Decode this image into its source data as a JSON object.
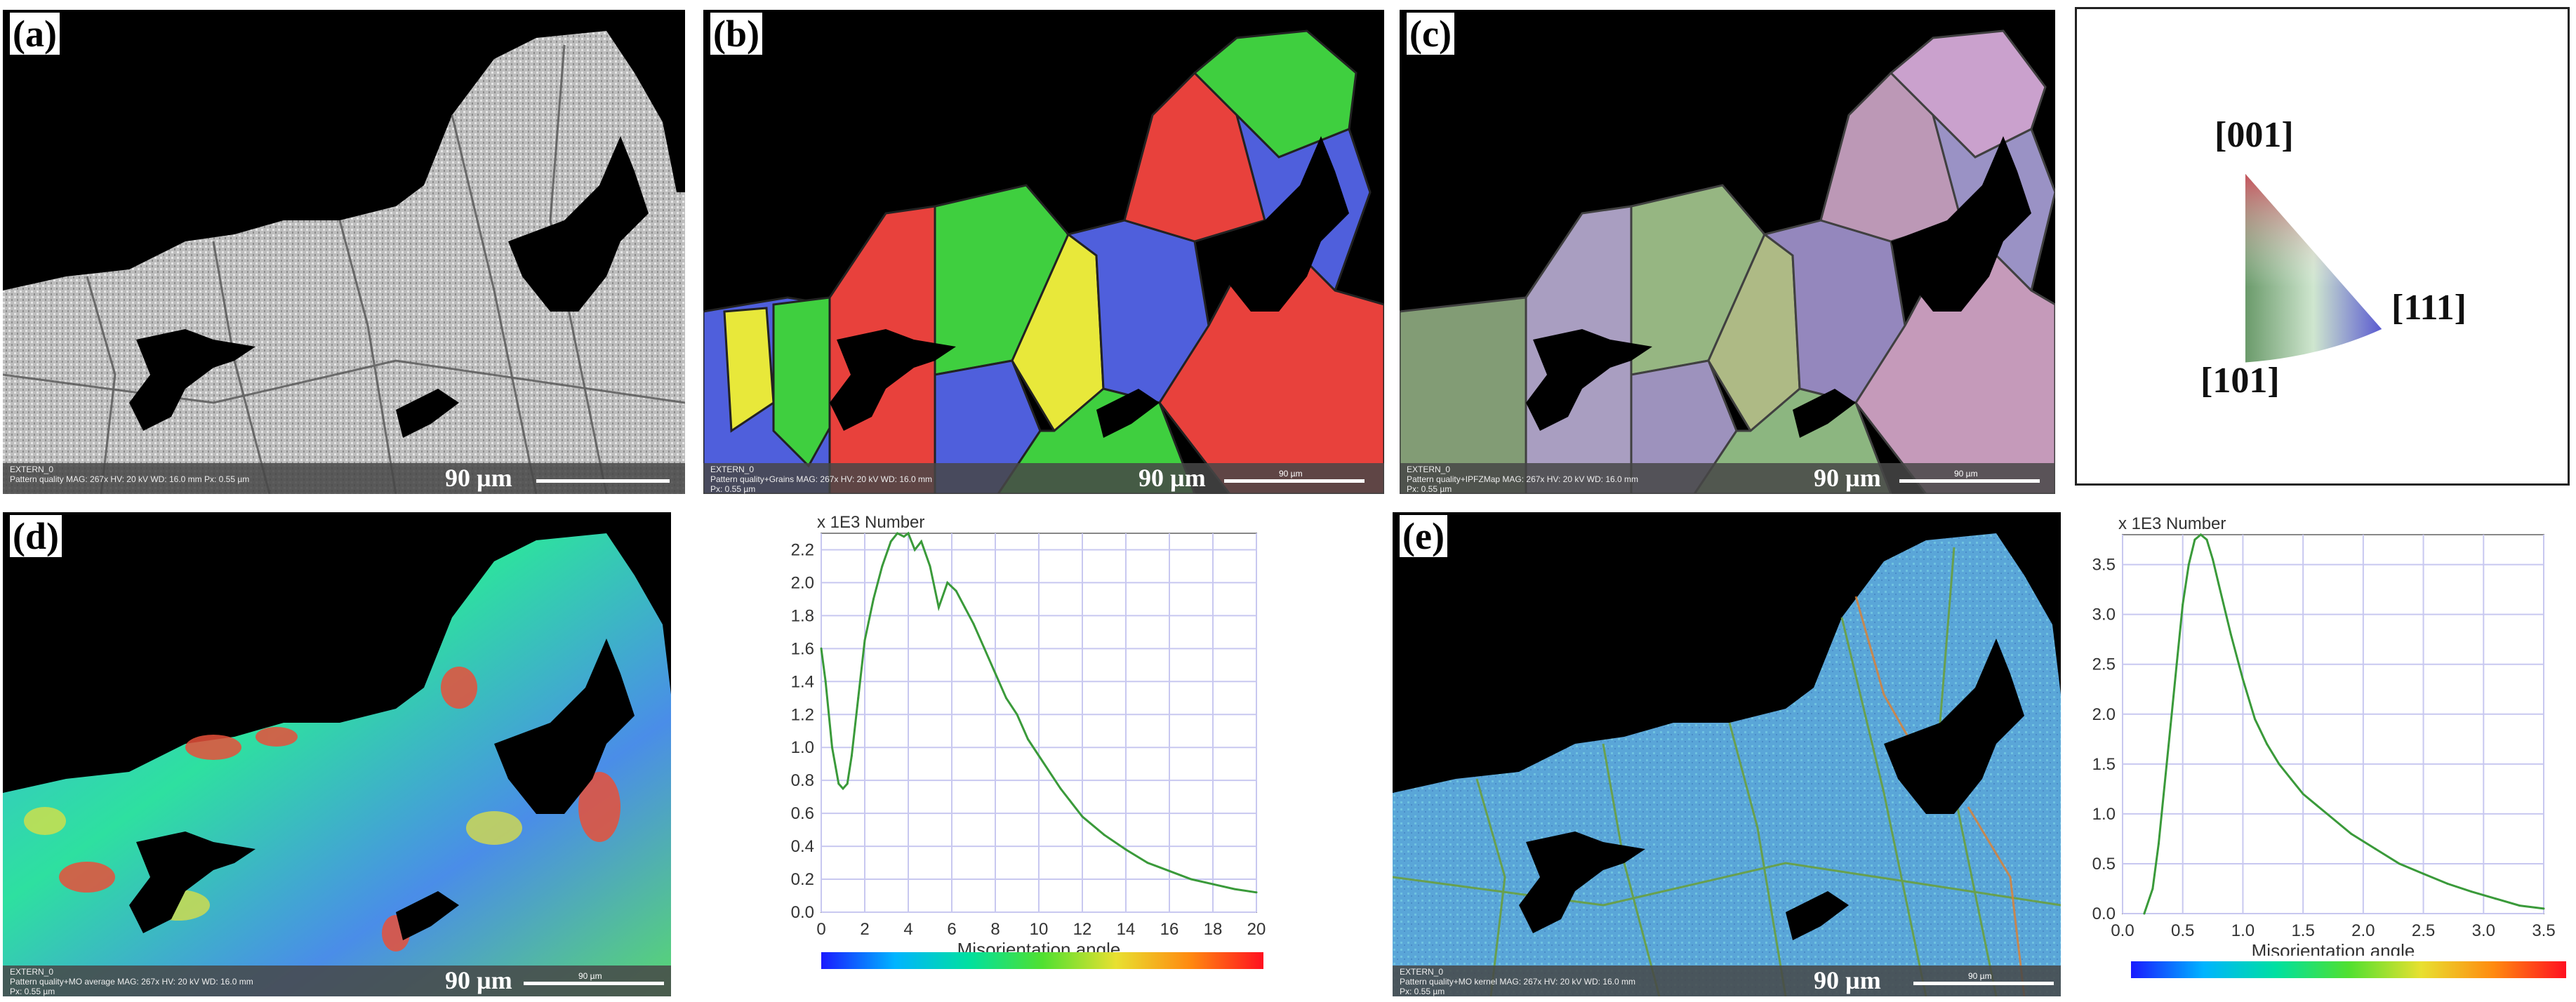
{
  "panels": {
    "a": {
      "label": "(a)",
      "footer": {
        "title": "EXTERN_0",
        "line": "Pattern quality   MAG: 267x   HV: 20 kV   WD: 16.0 mm   Px: 0.55 µm"
      },
      "scale": "90 µm"
    },
    "b": {
      "label": "(b)",
      "footer": {
        "title": "EXTERN_0",
        "line": "Pattern quality+Grains   MAG: 267x   HV: 20 kV   WD: 16.0 mm",
        "px": "Px: 0.55 µm"
      },
      "scale": "90 µm",
      "scale_small": "90 µm"
    },
    "c": {
      "label": "(c)",
      "footer": {
        "title": "EXTERN_0",
        "line": "Pattern quality+IPFZMap   MAG: 267x   HV: 20 kV   WD: 16.0 mm",
        "px": "Px: 0.55 µm"
      },
      "scale": "90 µm",
      "scale_small": "90 µm"
    },
    "d": {
      "label": "(d)",
      "footer": {
        "title": "EXTERN_0",
        "line": "Pattern quality+MO average   MAG: 267x   HV: 20 kV   WD: 16.0 mm",
        "px": "Px: 0.55 µm"
      },
      "scale": "90 µm",
      "scale_small": "90 µm"
    },
    "e": {
      "label": "(e)",
      "footer": {
        "title": "EXTERN_0",
        "line": "Pattern quality+MO kernel   MAG: 267x   HV: 20 kV   WD: 16.0 mm",
        "px": "Px: 0.55 µm"
      },
      "scale": "90 µm",
      "scale_small": "90 µm"
    }
  },
  "ipf_legend": {
    "top": "[001]",
    "right": "[111]",
    "bottom": "[101]"
  },
  "colors": {
    "red": "#e8413c",
    "green": "#3fcf3f",
    "blue": "#4f5fdc",
    "yellow": "#e8e83a",
    "background": "#000000"
  },
  "chart_data": [
    {
      "type": "line",
      "title": "x 1E3 Number",
      "xlabel": "Misorientation angle",
      "ylabel": "",
      "xlim": [
        0,
        20
      ],
      "ylim": [
        0,
        2.3
      ],
      "xticks": [
        "0",
        "2",
        "4",
        "6",
        "8",
        "10",
        "12",
        "14",
        "16",
        "18",
        "20"
      ],
      "yticks": [
        "0.0",
        "0.2",
        "0.4",
        "0.6",
        "0.8",
        "1.0",
        "1.2",
        "1.4",
        "1.6",
        "1.8",
        "2.0",
        "2.2"
      ],
      "series": [
        {
          "color": "#3a9a3a",
          "x": [
            0,
            0.2,
            0.5,
            0.8,
            1.0,
            1.2,
            1.4,
            1.7,
            2.0,
            2.4,
            2.8,
            3.2,
            3.5,
            3.8,
            4.0,
            4.3,
            4.6,
            5.0,
            5.4,
            5.8,
            6.2,
            6.6,
            7.0,
            7.5,
            8.0,
            8.5,
            9.0,
            9.5,
            10.0,
            11.0,
            12.0,
            13.0,
            14.0,
            15.0,
            16.0,
            17.0,
            18.0,
            19.0,
            20.0
          ],
          "y": [
            1.6,
            1.4,
            1.0,
            0.78,
            0.75,
            0.78,
            0.95,
            1.3,
            1.65,
            1.9,
            2.1,
            2.25,
            2.3,
            2.28,
            2.3,
            2.2,
            2.25,
            2.1,
            1.85,
            2.0,
            1.95,
            1.85,
            1.75,
            1.6,
            1.45,
            1.3,
            1.2,
            1.05,
            0.95,
            0.75,
            0.58,
            0.47,
            0.38,
            0.3,
            0.25,
            0.2,
            0.17,
            0.14,
            0.12
          ]
        }
      ]
    },
    {
      "type": "line",
      "title": "x 1E3 Number",
      "xlabel": "Misorientation angle",
      "ylabel": "",
      "xlim": [
        0,
        3.5
      ],
      "ylim": [
        0,
        3.8
      ],
      "xticks": [
        "0.0",
        "0.5",
        "1.0",
        "1.5",
        "2.0",
        "2.5",
        "3.0",
        "3.5"
      ],
      "yticks": [
        "0.0",
        "0.5",
        "1.0",
        "1.5",
        "2.0",
        "2.5",
        "3.0",
        "3.5"
      ],
      "series": [
        {
          "color": "#3a9a3a",
          "x": [
            0.18,
            0.25,
            0.3,
            0.35,
            0.4,
            0.45,
            0.5,
            0.55,
            0.6,
            0.65,
            0.7,
            0.75,
            0.8,
            0.9,
            1.0,
            1.1,
            1.2,
            1.3,
            1.4,
            1.5,
            1.7,
            1.9,
            2.1,
            2.3,
            2.5,
            2.7,
            2.9,
            3.1,
            3.3,
            3.5
          ],
          "y": [
            0.0,
            0.25,
            0.7,
            1.3,
            1.9,
            2.5,
            3.1,
            3.5,
            3.75,
            3.8,
            3.75,
            3.55,
            3.3,
            2.8,
            2.35,
            1.95,
            1.7,
            1.5,
            1.35,
            1.2,
            1.0,
            0.8,
            0.65,
            0.5,
            0.4,
            0.3,
            0.22,
            0.15,
            0.08,
            0.05
          ]
        }
      ]
    }
  ]
}
